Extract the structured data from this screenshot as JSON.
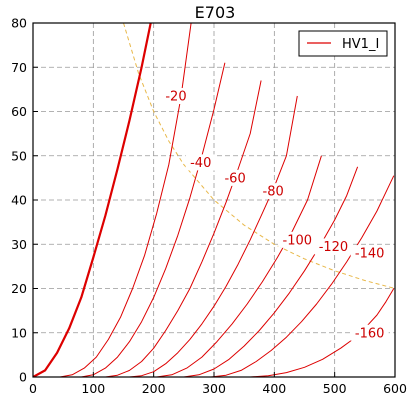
{
  "chart_data": {
    "type": "line",
    "title": "E703",
    "xlabel": "",
    "ylabel": "",
    "xlim": [
      0,
      600
    ],
    "ylim": [
      0,
      80
    ],
    "xticks": [
      0,
      100,
      200,
      300,
      400,
      500,
      600
    ],
    "yticks": [
      0,
      10,
      20,
      30,
      40,
      50,
      60,
      70,
      80
    ],
    "xtick_labels": [
      "0",
      "100",
      "200",
      "300",
      "400",
      "500",
      "600"
    ],
    "ytick_labels": [
      "0",
      "10",
      "20",
      "30",
      "40",
      "50",
      "60",
      "70",
      "80"
    ],
    "grid": true,
    "legend": {
      "position": "top-right",
      "entries": [
        "HV1_I"
      ]
    },
    "colors": {
      "curve": "#dd0000",
      "dissipation": "#e8b84a",
      "grid": "#999999"
    },
    "series": [
      {
        "grid_voltage": "0",
        "x": [
          0,
          20,
          40,
          60,
          80,
          100,
          120,
          140,
          160,
          180,
          195
        ],
        "y": [
          0,
          1.5,
          5.5,
          11,
          18,
          27,
          36.5,
          47,
          58,
          70,
          80
        ]
      },
      {
        "grid_voltage": "-20",
        "x": [
          45,
          65,
          85,
          105,
          125,
          145,
          165,
          185,
          205,
          225,
          245,
          262
        ],
        "y": [
          0,
          0.5,
          2,
          4.5,
          8.5,
          13.5,
          20,
          27.5,
          37,
          48,
          63,
          80
        ]
      },
      {
        "grid_voltage": "-40",
        "x": [
          80,
          100,
          120,
          140,
          160,
          180,
          200,
          220,
          240,
          260,
          280,
          300,
          318
        ],
        "y": [
          0,
          0.5,
          2,
          4.5,
          8,
          12.5,
          18,
          24.5,
          32,
          40.5,
          50,
          60.5,
          71
        ]
      },
      {
        "grid_voltage": "-60",
        "x": [
          120,
          140,
          160,
          180,
          200,
          220,
          240,
          260,
          280,
          300,
          320,
          340,
          360,
          378
        ],
        "y": [
          0,
          0.4,
          1.5,
          3.5,
          6.5,
          10.5,
          15,
          20,
          26,
          32.5,
          39.5,
          47,
          55,
          67
        ]
      },
      {
        "grid_voltage": "-80",
        "x": [
          160,
          180,
          200,
          220,
          240,
          260,
          280,
          300,
          320,
          340,
          360,
          380,
          400,
          420,
          438
        ],
        "y": [
          0,
          0.3,
          1.2,
          3,
          5.5,
          8.5,
          12,
          16,
          20.5,
          25.5,
          31,
          37,
          43,
          50,
          63.5
        ]
      },
      {
        "grid_voltage": "-100",
        "x": [
          205,
          230,
          255,
          280,
          305,
          330,
          355,
          380,
          405,
          430,
          455,
          478
        ],
        "y": [
          0,
          0.5,
          2,
          4.5,
          8,
          12,
          16.5,
          21.5,
          27,
          33,
          40,
          50
        ]
      },
      {
        "grid_voltage": "-120",
        "x": [
          250,
          275,
          300,
          325,
          350,
          375,
          400,
          425,
          450,
          475,
          500,
          520,
          538
        ],
        "y": [
          0,
          0.5,
          1.8,
          4,
          7,
          10.5,
          14.5,
          19,
          24,
          29.5,
          35.5,
          41,
          47.5
        ]
      },
      {
        "grid_voltage": "-140",
        "x": [
          295,
          320,
          345,
          370,
          395,
          420,
          445,
          470,
          495,
          520,
          545,
          570,
          598
        ],
        "y": [
          0,
          0.4,
          1.5,
          3.5,
          6,
          9,
          12.5,
          16.5,
          21,
          26,
          31.5,
          37.5,
          45.5
        ]
      },
      {
        "grid_voltage": "-160",
        "x": [
          360,
          390,
          420,
          450,
          480,
          510,
          530,
          550,
          570,
          585,
          598
        ],
        "y": [
          0,
          0.3,
          1,
          2.2,
          4,
          6.5,
          8.5,
          11,
          14,
          17,
          20
        ]
      }
    ],
    "dissipation_curve": {
      "x": [
        150,
        175,
        200,
        225,
        250,
        300,
        350,
        400,
        450,
        500,
        550,
        600
      ],
      "y": [
        80,
        68.6,
        60,
        53.3,
        48,
        40,
        34.3,
        30,
        26.7,
        24,
        21.8,
        20
      ]
    },
    "annotations": [
      {
        "text": "-20",
        "x": 237,
        "y": 63.5
      },
      {
        "text": "-40",
        "x": 278,
        "y": 48.5
      },
      {
        "text": "-60",
        "x": 335,
        "y": 45
      },
      {
        "text": "-80",
        "x": 398,
        "y": 42
      },
      {
        "text": "-100",
        "x": 438,
        "y": 31
      },
      {
        "text": "-120",
        "x": 498,
        "y": 29.5
      },
      {
        "text": "-140",
        "x": 558,
        "y": 28
      },
      {
        "text": "-160",
        "x": 558,
        "y": 10
      }
    ]
  }
}
